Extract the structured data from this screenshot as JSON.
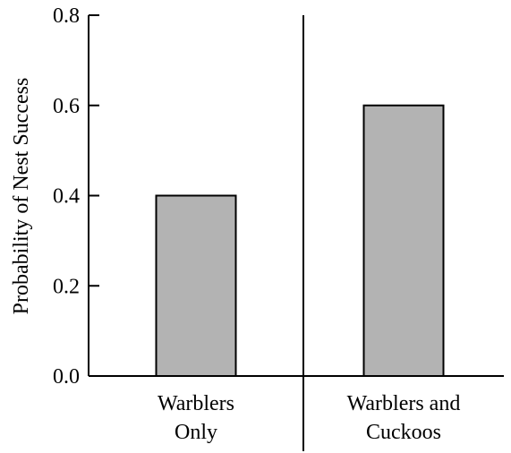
{
  "chart_data": {
    "type": "bar",
    "categories": [
      {
        "lines": [
          "Warblers",
          "Only"
        ]
      },
      {
        "lines": [
          "Warblers and",
          "Cuckoos"
        ]
      }
    ],
    "values": [
      0.4,
      0.6
    ],
    "title": "",
    "xlabel": "",
    "ylabel": "Probability of Nest Success",
    "ylim": [
      0,
      0.8
    ],
    "yticks": [
      "0.0",
      "0.2",
      "0.4",
      "0.6",
      "0.8"
    ],
    "grid": false,
    "bar_color": "#b3b3b3",
    "divider_between_categories": true
  }
}
